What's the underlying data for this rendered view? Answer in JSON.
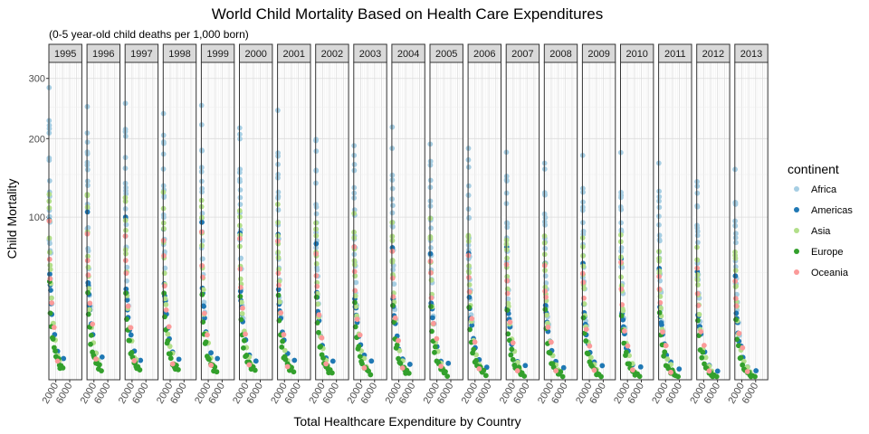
{
  "chart_data": {
    "type": "scatter",
    "title": "World Child Mortality Based on Health Care Expenditures",
    "subtitle": "(0-5 year-old child deaths per 1,000 born)",
    "xlabel": "Total Healthcare Expenditure by Country",
    "ylabel": "Child Mortality",
    "y_scale": "sqrt",
    "ylim": [
      2,
      330
    ],
    "xlim": [
      0,
      9500
    ],
    "y_ticks": [
      100,
      200,
      300
    ],
    "x_ticks": [
      2000,
      6000
    ],
    "x_tick_labels": [
      "2000",
      "6000"
    ],
    "facets": [
      "1995",
      "1996",
      "1997",
      "1998",
      "1999",
      "2000",
      "2001",
      "2002",
      "2003",
      "2004",
      "2005",
      "2006",
      "2007",
      "2008",
      "2009",
      "2010",
      "2011",
      "2012",
      "2013"
    ],
    "legend": {
      "title": "continent",
      "placement": "right"
    },
    "series": [
      {
        "name": "Africa",
        "color": "#a6cee3",
        "points": [
          [
            40,
            280
          ],
          [
            60,
            240
          ],
          [
            90,
            220
          ],
          [
            120,
            200
          ],
          [
            50,
            175
          ],
          [
            70,
            160
          ],
          [
            150,
            140
          ],
          [
            200,
            130
          ],
          [
            100,
            115
          ],
          [
            300,
            95
          ],
          [
            80,
            85
          ],
          [
            500,
            60
          ],
          [
            250,
            75
          ],
          [
            700,
            35
          ],
          [
            400,
            45
          ],
          [
            150,
            105
          ],
          [
            60,
            190
          ],
          [
            180,
            150
          ],
          [
            350,
            70
          ],
          [
            900,
            28
          ]
        ]
      },
      {
        "name": "Americas",
        "color": "#1f78b4",
        "points": [
          [
            100,
            100
          ],
          [
            250,
            45
          ],
          [
            500,
            35
          ],
          [
            800,
            25
          ],
          [
            1200,
            18
          ],
          [
            1600,
            14
          ],
          [
            2500,
            9
          ],
          [
            4200,
            7
          ],
          [
            600,
            30
          ],
          [
            350,
            40
          ]
        ]
      },
      {
        "name": "Asia",
        "color": "#b2df8a",
        "points": [
          [
            40,
            130
          ],
          [
            80,
            110
          ],
          [
            150,
            90
          ],
          [
            100,
            80
          ],
          [
            200,
            70
          ],
          [
            300,
            60
          ],
          [
            500,
            40
          ],
          [
            700,
            30
          ],
          [
            1200,
            18
          ],
          [
            1800,
            12
          ],
          [
            2500,
            8
          ],
          [
            3000,
            6
          ],
          [
            60,
            120
          ],
          [
            400,
            50
          ]
        ]
      },
      {
        "name": "Europe",
        "color": "#33a02c",
        "points": [
          [
            200,
            40
          ],
          [
            400,
            25
          ],
          [
            700,
            18
          ],
          [
            1000,
            12
          ],
          [
            1500,
            9
          ],
          [
            2000,
            7
          ],
          [
            2500,
            6
          ],
          [
            3000,
            5
          ],
          [
            3500,
            5
          ],
          [
            4000,
            4
          ],
          [
            1800,
            8
          ],
          [
            2800,
            6
          ],
          [
            1200,
            14
          ],
          [
            3200,
            4.5
          ]
        ]
      },
      {
        "name": "Oceania",
        "color": "#fb9a99",
        "points": [
          [
            60,
            90
          ],
          [
            150,
            65
          ],
          [
            300,
            50
          ],
          [
            800,
            30
          ],
          [
            1500,
            18
          ],
          [
            2500,
            6
          ]
        ]
      }
    ]
  }
}
